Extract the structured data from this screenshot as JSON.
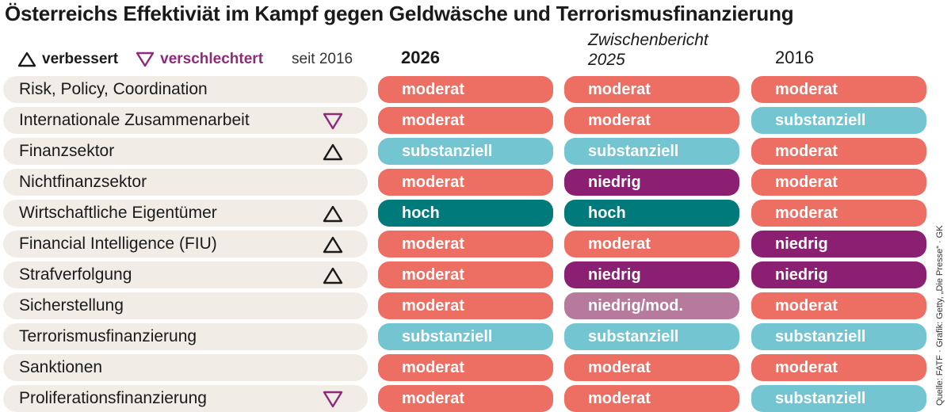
{
  "title": "Österreichs Effektiviät im Kampf gegen Geldwäsche und Terrorismusfinanzierung",
  "legend": {
    "improved": "verbessert",
    "worsened": "verschlechtert",
    "since": "seit 2016"
  },
  "columns": {
    "c2026": "2026",
    "c2025_line1": "Zwischenbericht",
    "c2025_line2": "2025",
    "c2016": "2016"
  },
  "colors": {
    "hoch": "#007a7a",
    "substanziell": "#72c5d1",
    "moderat": "#ed6e62",
    "niedrig/mod.": "#b57a9c",
    "niedrig": "#8b2072",
    "improved_icon": "#1a1a1a",
    "worsened_icon": "#8e2a7a"
  },
  "rows": [
    {
      "label": "Risk, Policy, Coordination",
      "change": "",
      "v2026": "moderat",
      "v2025": "moderat",
      "v2016": "moderat"
    },
    {
      "label": "Internationale Zusammenarbeit",
      "change": "down",
      "v2026": "moderat",
      "v2025": "moderat",
      "v2016": "substanziell"
    },
    {
      "label": "Finanzsektor",
      "change": "up",
      "v2026": "substanziell",
      "v2025": "substanziell",
      "v2016": "moderat"
    },
    {
      "label": "Nichtfinanzsektor",
      "change": "",
      "v2026": "moderat",
      "v2025": "niedrig",
      "v2016": "moderat"
    },
    {
      "label": "Wirtschaftliche Eigentümer",
      "change": "up",
      "v2026": "hoch",
      "v2025": "hoch",
      "v2016": "moderat"
    },
    {
      "label": "Financial Intelligence (FIU)",
      "change": "up",
      "v2026": "moderat",
      "v2025": "moderat",
      "v2016": "niedrig"
    },
    {
      "label": "Strafverfolgung",
      "change": "up",
      "v2026": "moderat",
      "v2025": "niedrig",
      "v2016": "niedrig"
    },
    {
      "label": "Sicherstellung",
      "change": "",
      "v2026": "moderat",
      "v2025": "niedrig/mod.",
      "v2016": "moderat"
    },
    {
      "label": "Terrorismusfinanzierung",
      "change": "",
      "v2026": "substanziell",
      "v2025": "substanziell",
      "v2016": "substanziell"
    },
    {
      "label": "Sanktionen",
      "change": "",
      "v2026": "moderat",
      "v2025": "moderat",
      "v2016": "moderat"
    },
    {
      "label": "Proliferationsfinanzierung",
      "change": "down",
      "v2026": "moderat",
      "v2025": "moderat",
      "v2016": "substanziell"
    }
  ],
  "source": "Quelle: FATF · Grafik: Getty, „Die Presse“ · GK"
}
